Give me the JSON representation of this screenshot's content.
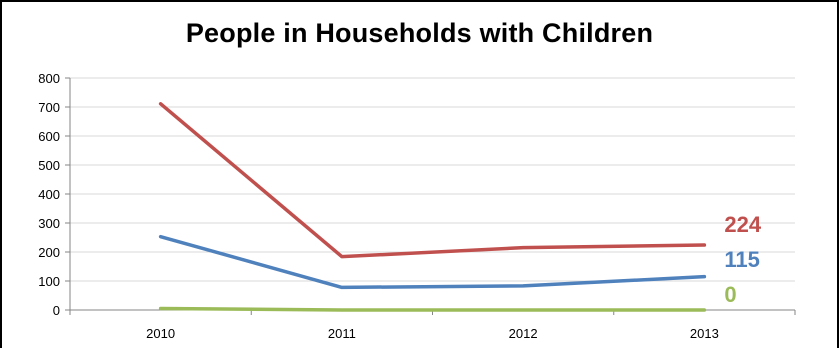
{
  "chart_data": {
    "type": "line",
    "title": "People in Households with Children",
    "xlabel": "",
    "ylabel": "",
    "categories": [
      "2010",
      "2011",
      "2012",
      "2013"
    ],
    "ylim": [
      0,
      800
    ],
    "yticks": [
      "0",
      "100",
      "200",
      "300",
      "400",
      "500",
      "600",
      "700",
      "800"
    ],
    "grid": true,
    "legend": "none",
    "series": [
      {
        "values": [
          711,
          184,
          215,
          224
        ],
        "color": "#c0504d",
        "end_label": "224"
      },
      {
        "values": [
          253,
          78,
          83,
          115
        ],
        "color": "#4f81bd",
        "end_label": "115"
      },
      {
        "values": [
          5,
          0,
          0,
          0
        ],
        "color": "#9bbb59",
        "end_label": "0"
      }
    ]
  }
}
